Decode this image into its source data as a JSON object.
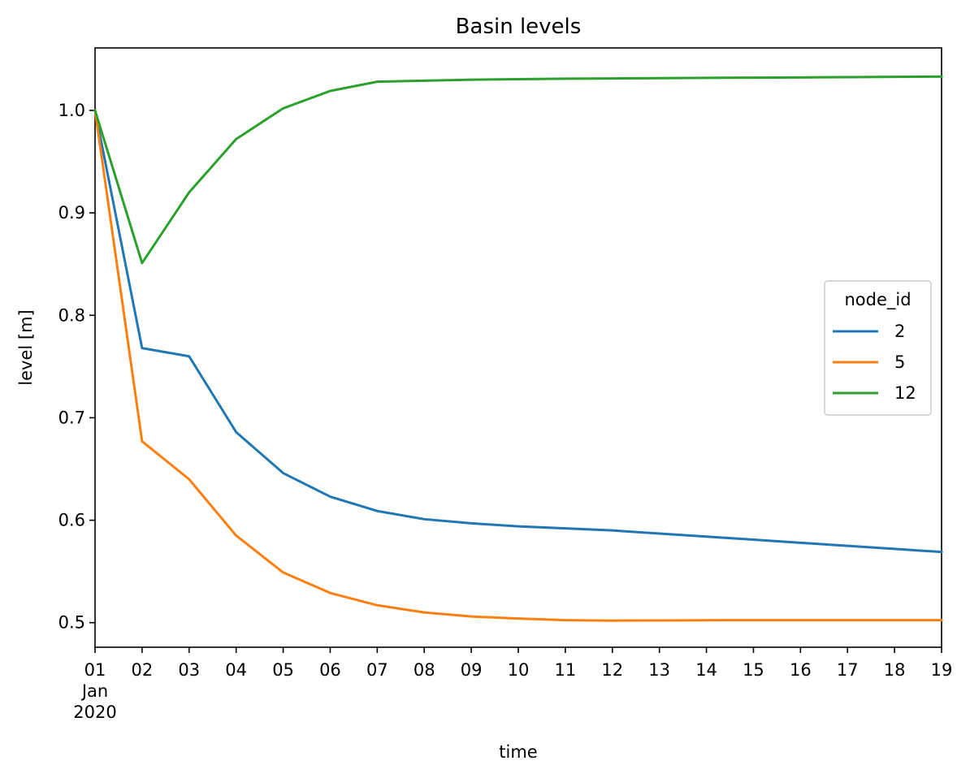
{
  "chart_data": {
    "type": "line",
    "title": "Basin levels",
    "xlabel": "time",
    "ylabel": "level [m]",
    "x": [
      "2020-01-01",
      "2020-01-02",
      "2020-01-03",
      "2020-01-04",
      "2020-01-05",
      "2020-01-06",
      "2020-01-07",
      "2020-01-08",
      "2020-01-09",
      "2020-01-10",
      "2020-01-11",
      "2020-01-12",
      "2020-01-13",
      "2020-01-14",
      "2020-01-15",
      "2020-01-16",
      "2020-01-17",
      "2020-01-18",
      "2020-01-19"
    ],
    "x_ticks": [
      "01",
      "02",
      "03",
      "04",
      "05",
      "06",
      "07",
      "08",
      "09",
      "10",
      "11",
      "12",
      "13",
      "14",
      "15",
      "16",
      "17",
      "18",
      "19"
    ],
    "x_tick_sub": [
      "Jan",
      "2020"
    ],
    "ylim": [
      0.476,
      1.061
    ],
    "y_ticks": [
      0.5,
      0.6,
      0.7,
      0.8,
      0.9,
      1.0
    ],
    "y_tick_labels": [
      "0.5",
      "0.6",
      "0.7",
      "0.8",
      "0.9",
      "1.0"
    ],
    "grid": false,
    "legend": {
      "title": "node_id",
      "placement": "center-right"
    },
    "series": [
      {
        "name": "2",
        "color": "#1f77b4",
        "values": [
          1.0,
          0.768,
          0.76,
          0.686,
          0.646,
          0.623,
          0.609,
          0.601,
          0.597,
          0.594,
          0.592,
          0.59,
          0.587,
          0.584,
          0.581,
          0.578,
          0.575,
          0.572,
          0.569
        ]
      },
      {
        "name": "5",
        "color": "#ff7f0e",
        "values": [
          1.0,
          0.677,
          0.64,
          0.585,
          0.549,
          0.529,
          0.517,
          0.51,
          0.506,
          0.504,
          0.5025,
          0.502,
          0.5022,
          0.5024,
          0.5025,
          0.5025,
          0.5025,
          0.5025,
          0.5025
        ]
      },
      {
        "name": "12",
        "color": "#2ca02c",
        "values": [
          1.0,
          0.851,
          0.92,
          0.972,
          1.002,
          1.019,
          1.028,
          1.029,
          1.03,
          1.0305,
          1.031,
          1.0312,
          1.0315,
          1.0318,
          1.032,
          1.0322,
          1.0325,
          1.0328,
          1.033
        ]
      }
    ]
  }
}
